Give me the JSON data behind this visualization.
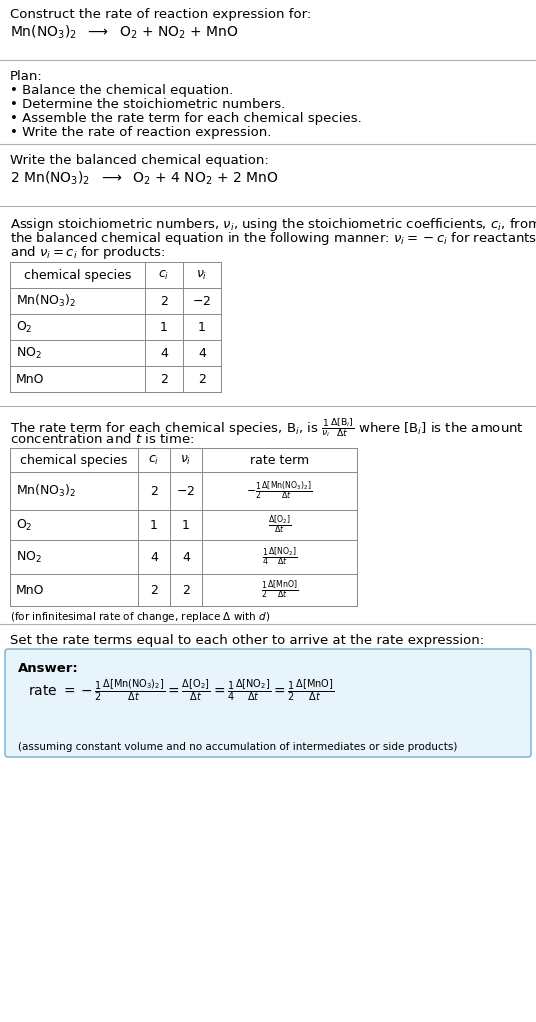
{
  "bg_color": "#ffffff",
  "answer_bg_color": "#e8f4fb",
  "answer_border_color": "#8ab8d4",
  "title_text": "Construct the rate of reaction expression for:",
  "reaction_unbalanced": "Mn(NO$_3$)$_2$  $\\longrightarrow$  O$_2$ + NO$_2$ + MnO",
  "plan_header": "Plan:",
  "plan_bullets": [
    "• Balance the chemical equation.",
    "• Determine the stoichiometric numbers.",
    "• Assemble the rate term for each chemical species.",
    "• Write the rate of reaction expression."
  ],
  "balanced_header": "Write the balanced chemical equation:",
  "reaction_balanced": "2 Mn(NO$_3$)$_2$  $\\longrightarrow$  O$_2$ + 4 NO$_2$ + 2 MnO",
  "stoich_header1": "Assign stoichiometric numbers, $\\nu_i$, using the stoichiometric coefficients, $c_i$, from",
  "stoich_header2": "the balanced chemical equation in the following manner: $\\nu_i = -c_i$ for reactants",
  "stoich_header3": "and $\\nu_i = c_i$ for products:",
  "table1_headers": [
    "chemical species",
    "$c_i$",
    "$\\nu_i$"
  ],
  "table1_rows": [
    [
      "Mn(NO$_3$)$_2$",
      "2",
      "$-2$"
    ],
    [
      "O$_2$",
      "1",
      "1"
    ],
    [
      "NO$_2$",
      "4",
      "4"
    ],
    [
      "MnO",
      "2",
      "2"
    ]
  ],
  "rate_intro1": "The rate term for each chemical species, B$_i$, is $\\frac{1}{\\nu_i}\\frac{\\Delta[\\mathrm{B}_i]}{\\Delta t}$ where [B$_i$] is the amount",
  "rate_intro2": "concentration and $t$ is time:",
  "table2_headers": [
    "chemical species",
    "$c_i$",
    "$\\nu_i$",
    "rate term"
  ],
  "table2_rows": [
    [
      "Mn(NO$_3$)$_2$",
      "2",
      "$-2$",
      "$-\\frac{1}{2}\\frac{\\Delta[\\mathrm{Mn(NO_3)_2}]}{\\Delta t}$"
    ],
    [
      "O$_2$",
      "1",
      "1",
      "$\\frac{\\Delta[\\mathrm{O_2}]}{\\Delta t}$"
    ],
    [
      "NO$_2$",
      "4",
      "4",
      "$\\frac{1}{4}\\frac{\\Delta[\\mathrm{NO_2}]}{\\Delta t}$"
    ],
    [
      "MnO",
      "2",
      "2",
      "$\\frac{1}{2}\\frac{\\Delta[\\mathrm{MnO}]}{\\Delta t}$"
    ]
  ],
  "infinitesimal_note": "(for infinitesimal rate of change, replace Δ with $d$)",
  "rate_expression_header": "Set the rate terms equal to each other to arrive at the rate expression:",
  "answer_label": "Answer:",
  "answer_footnote": "(assuming constant volume and no accumulation of intermediates or side products)"
}
